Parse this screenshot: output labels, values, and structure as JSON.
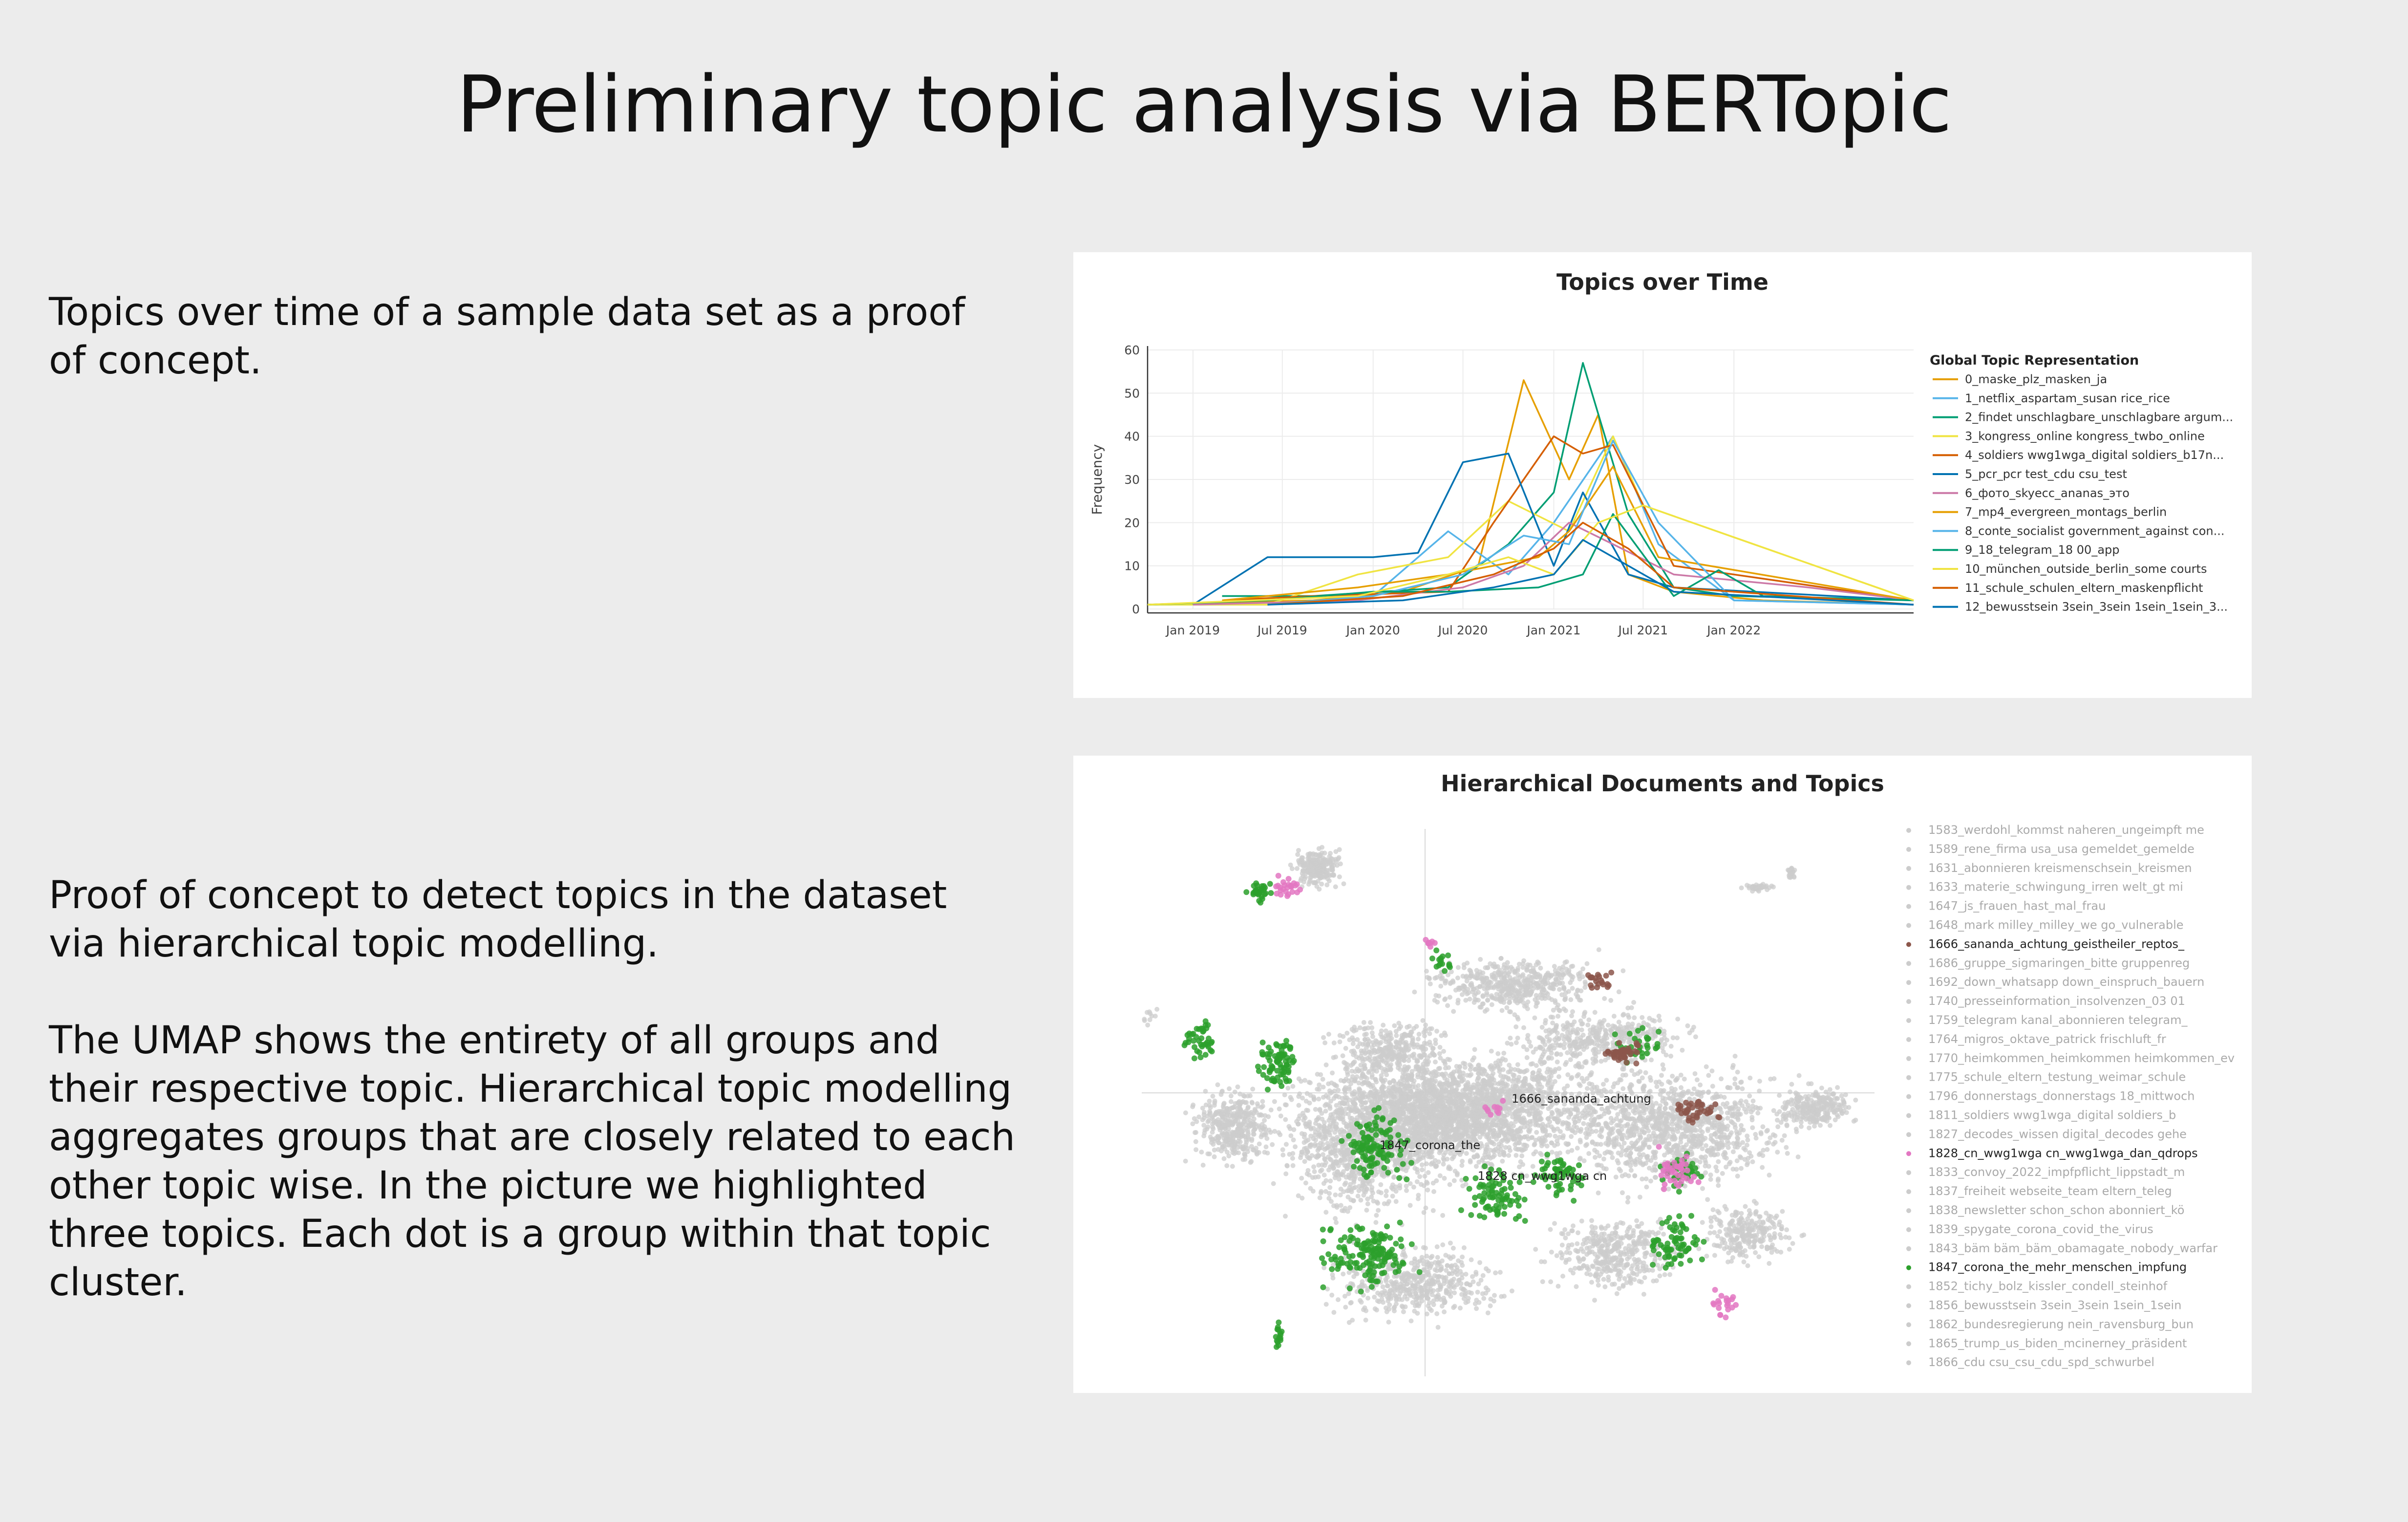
{
  "slide": {
    "title": "Preliminary topic analysis via BERTopic",
    "text1": "Topics over time of a sample data set as a proof of concept.",
    "text2": "Proof of concept to detect topics in the dataset via hierarchical topic modelling.",
    "text3": "The UMAP shows the entirety of all groups and their respective topic. Hierarchical topic modelling aggregates groups that are closely related to each other topic wise. In the picture we highlighted three topics. Each dot is a group within that topic cluster."
  },
  "chart_data": [
    {
      "type": "line",
      "title": "Topics over Time",
      "ylabel": "Frequency",
      "xlabel": "",
      "ylim": [
        0,
        60
      ],
      "xlim": [
        "2018-10-01",
        "2022-12-31"
      ],
      "yticks": [
        0,
        10,
        20,
        30,
        40,
        50,
        60
      ],
      "xticks": [
        {
          "date": "2019-01-01",
          "label": "Jan 2019"
        },
        {
          "date": "2019-07-01",
          "label": "Jul 2019"
        },
        {
          "date": "2020-01-01",
          "label": "Jan 2020"
        },
        {
          "date": "2020-07-01",
          "label": "Jul 2020"
        },
        {
          "date": "2021-01-01",
          "label": "Jan 2021"
        },
        {
          "date": "2021-07-01",
          "label": "Jul 2021"
        },
        {
          "date": "2022-01-01",
          "label": "Jan 2022"
        }
      ],
      "grid": true,
      "legend_title": "Global Topic Representation",
      "legend_position": "right",
      "series": [
        {
          "name": "0_maske_plz_masken_ja",
          "color": "#E69F00",
          "x": [
            "2018-10-01",
            "2019-09-01",
            "2020-03-01",
            "2020-08-01",
            "2020-11-01",
            "2021-02-01",
            "2021-04-01",
            "2021-06-01",
            "2021-09-01",
            "2022-03-01",
            "2022-12-31"
          ],
          "y": [
            1,
            2,
            4,
            10,
            53,
            30,
            45,
            8,
            4,
            2,
            1
          ]
        },
        {
          "name": "1_netflix_aspartam_susan rice_rice",
          "color": "#56B4E9",
          "x": [
            "2018-10-01",
            "2019-06-01",
            "2020-01-01",
            "2020-06-01",
            "2020-10-01",
            "2021-01-01",
            "2021-05-01",
            "2021-08-01",
            "2022-01-01",
            "2022-12-31"
          ],
          "y": [
            1,
            1,
            3,
            18,
            8,
            20,
            40,
            15,
            2,
            1
          ]
        },
        {
          "name": "2_findet unschlagbare_unschlagbare argum...",
          "color": "#009E73",
          "x": [
            "2019-03-01",
            "2019-09-01",
            "2020-06-01",
            "2020-10-01",
            "2021-01-01",
            "2021-03-01",
            "2021-06-01",
            "2021-09-01",
            "2022-01-01",
            "2022-12-31"
          ],
          "y": [
            3,
            3,
            5,
            15,
            27,
            57,
            22,
            5,
            3,
            2
          ]
        },
        {
          "name": "3_kongress_online kongress_twbo_online",
          "color": "#F0E442",
          "x": [
            "2018-10-01",
            "2019-06-01",
            "2019-12-01",
            "2020-06-01",
            "2020-10-01",
            "2021-02-01",
            "2021-05-01",
            "2021-07-01",
            "2022-12-31"
          ],
          "y": [
            1,
            1,
            8,
            12,
            25,
            18,
            40,
            24,
            2
          ]
        },
        {
          "name": "4_soldiers wwg1wga_digital soldiers_b17n...",
          "color": "#D55E00",
          "x": [
            "2019-03-01",
            "2019-09-01",
            "2020-06-01",
            "2020-09-01",
            "2021-01-01",
            "2021-03-01",
            "2021-05-01",
            "2021-09-01",
            "2022-12-31"
          ],
          "y": [
            2,
            3,
            4,
            20,
            40,
            36,
            38,
            10,
            2
          ]
        },
        {
          "name": "5_pcr_pcr test_cdu csu_test",
          "color": "#0072B2",
          "x": [
            "2019-01-01",
            "2019-06-01",
            "2020-01-01",
            "2020-04-01",
            "2020-07-01",
            "2020-10-01",
            "2021-01-01",
            "2021-03-01",
            "2021-06-01",
            "2021-09-01",
            "2022-12-31"
          ],
          "y": [
            1,
            12,
            12,
            13,
            34,
            36,
            10,
            27,
            8,
            5,
            2
          ]
        },
        {
          "name": "6_фото_skyecc_ananas_это",
          "color": "#CC79A7",
          "x": [
            "2019-01-01",
            "2019-12-01",
            "2020-07-01",
            "2020-11-01",
            "2021-02-01",
            "2021-05-01",
            "2021-09-01",
            "2022-06-01",
            "2022-12-31"
          ],
          "y": [
            1,
            2,
            5,
            10,
            20,
            15,
            8,
            5,
            2
          ]
        },
        {
          "name": "7_mp4_evergreen_montags_berlin",
          "color": "#E69F00",
          "x": [
            "2019-03-01",
            "2019-12-01",
            "2020-06-01",
            "2020-12-01",
            "2021-02-01",
            "2021-05-01",
            "2021-08-01",
            "2022-12-31"
          ],
          "y": [
            2,
            5,
            8,
            12,
            18,
            33,
            12,
            2
          ]
        },
        {
          "name": "8_conte_socialist government_against con...",
          "color": "#56B4E9",
          "x": [
            "2019-06-01",
            "2020-01-01",
            "2020-07-01",
            "2020-11-01",
            "2021-02-01",
            "2021-05-01",
            "2021-08-01",
            "2022-01-01",
            "2022-12-31"
          ],
          "y": [
            1,
            3,
            8,
            17,
            15,
            39,
            20,
            2,
            1
          ]
        },
        {
          "name": "9_18_telegram_18 00_app",
          "color": "#009E73",
          "x": [
            "2018-10-01",
            "2019-06-01",
            "2020-01-01",
            "2020-06-01",
            "2020-12-01",
            "2021-03-01",
            "2021-05-01",
            "2021-09-01",
            "2021-12-01",
            "2022-03-01",
            "2022-12-31"
          ],
          "y": [
            1,
            2,
            4,
            4,
            5,
            8,
            22,
            3,
            9,
            3,
            2
          ]
        },
        {
          "name": "10_münchen_outside_berlin_some courts",
          "color": "#F0E442",
          "x": [
            "2018-10-01",
            "2019-12-01",
            "2020-06-01",
            "2020-10-01",
            "2021-01-01",
            "2021-04-01",
            "2021-07-01",
            "2022-12-31"
          ],
          "y": [
            1,
            3,
            8,
            12,
            8,
            20,
            24,
            2
          ]
        },
        {
          "name": "11_schule_schulen_eltern_maskenpflicht",
          "color": "#D55E00",
          "x": [
            "2019-06-01",
            "2020-03-01",
            "2020-09-01",
            "2021-01-01",
            "2021-03-01",
            "2021-06-01",
            "2021-09-01",
            "2022-12-31"
          ],
          "y": [
            1,
            3,
            8,
            14,
            20,
            14,
            5,
            1
          ]
        },
        {
          "name": "12_bewusstsein 3sein_3sein 1sein_1sein_3...",
          "color": "#0072B2",
          "x": [
            "2019-06-01",
            "2020-03-01",
            "2020-09-01",
            "2021-01-01",
            "2021-03-01",
            "2021-06-01",
            "2021-09-01",
            "2022-12-31"
          ],
          "y": [
            1,
            2,
            5,
            8,
            16,
            10,
            4,
            1
          ]
        }
      ]
    },
    {
      "type": "scatter",
      "title": "Hierarchical Documents and Topics",
      "legend_position": "right",
      "labels": [
        "1666_sananda_achtung",
        "1847_corona_the",
        "1828 cn_wwg1wga cn"
      ],
      "legend": [
        {
          "name": "1583_werdohl_kommst naheren_ungeimpft me",
          "color": "#cccccc",
          "highlight": false
        },
        {
          "name": "1589_rene_firma usa_usa gemeldet_gemelde",
          "color": "#cccccc",
          "highlight": false
        },
        {
          "name": "1631_abonnieren kreismenschsein_kreismen",
          "color": "#cccccc",
          "highlight": false
        },
        {
          "name": "1633_materie_schwingung_irren welt_gt mi",
          "color": "#cccccc",
          "highlight": false
        },
        {
          "name": "1647_js_frauen_hast_mal_frau",
          "color": "#cccccc",
          "highlight": false
        },
        {
          "name": "1648_mark milley_milley_we go_vulnerable",
          "color": "#cccccc",
          "highlight": false
        },
        {
          "name": "1666_sananda_achtung_geistheiler_reptos_",
          "color": "#8c564b",
          "highlight": true
        },
        {
          "name": "1686_gruppe_sigmaringen_bitte gruppenreg",
          "color": "#cccccc",
          "highlight": false
        },
        {
          "name": "1692_down_whatsapp down_einspruch_bauern",
          "color": "#cccccc",
          "highlight": false
        },
        {
          "name": "1740_presseinformation_insolvenzen_03 01",
          "color": "#cccccc",
          "highlight": false
        },
        {
          "name": "1759_telegram kanal_abonnieren telegram_",
          "color": "#cccccc",
          "highlight": false
        },
        {
          "name": "1764_migros_oktave_patrick frischluft_fr",
          "color": "#cccccc",
          "highlight": false
        },
        {
          "name": "1770_heimkommen_heimkommen heimkommen_ev",
          "color": "#cccccc",
          "highlight": false
        },
        {
          "name": "1775_schule_eltern_testung_weimar_schule",
          "color": "#cccccc",
          "highlight": false
        },
        {
          "name": "1796_donnerstags_donnerstags 18_mittwoch",
          "color": "#cccccc",
          "highlight": false
        },
        {
          "name": "1811_soldiers wwg1wga_digital soldiers_b",
          "color": "#cccccc",
          "highlight": false
        },
        {
          "name": "1827_decodes_wissen digital_decodes gehe",
          "color": "#cccccc",
          "highlight": false
        },
        {
          "name": "1828_cn_wwg1wga cn_wwg1wga_dan_qdrops",
          "color": "#e377c2",
          "highlight": true
        },
        {
          "name": "1833_convoy_2022_impfpflicht_lippstadt_m",
          "color": "#cccccc",
          "highlight": false
        },
        {
          "name": "1837_freiheit webseite_team eltern_teleg",
          "color": "#cccccc",
          "highlight": false
        },
        {
          "name": "1838_newsletter schon_schon abonniert_kö",
          "color": "#cccccc",
          "highlight": false
        },
        {
          "name": "1839_spygate_corona_covid_the_virus",
          "color": "#cccccc",
          "highlight": false
        },
        {
          "name": "1843_bäm bäm_bäm_obamagate_nobody_warfar",
          "color": "#cccccc",
          "highlight": false
        },
        {
          "name": "1847_corona_the_mehr_menschen_impfung",
          "color": "#2ca02c",
          "highlight": true
        },
        {
          "name": "1852_tichy_bolz_kissler_condell_steinhof",
          "color": "#cccccc",
          "highlight": false
        },
        {
          "name": "1856_bewusstsein 3sein_3sein 1sein_1sein",
          "color": "#cccccc",
          "highlight": false
        },
        {
          "name": "1862_bundesregierung nein_ravensburg_bun",
          "color": "#cccccc",
          "highlight": false
        },
        {
          "name": "1865_trump_us_biden_mcinerney_präsident",
          "color": "#cccccc",
          "highlight": false
        },
        {
          "name": "1866_cdu csu_csu_cdu_spd_schwurbel",
          "color": "#cccccc",
          "highlight": false
        }
      ]
    }
  ]
}
